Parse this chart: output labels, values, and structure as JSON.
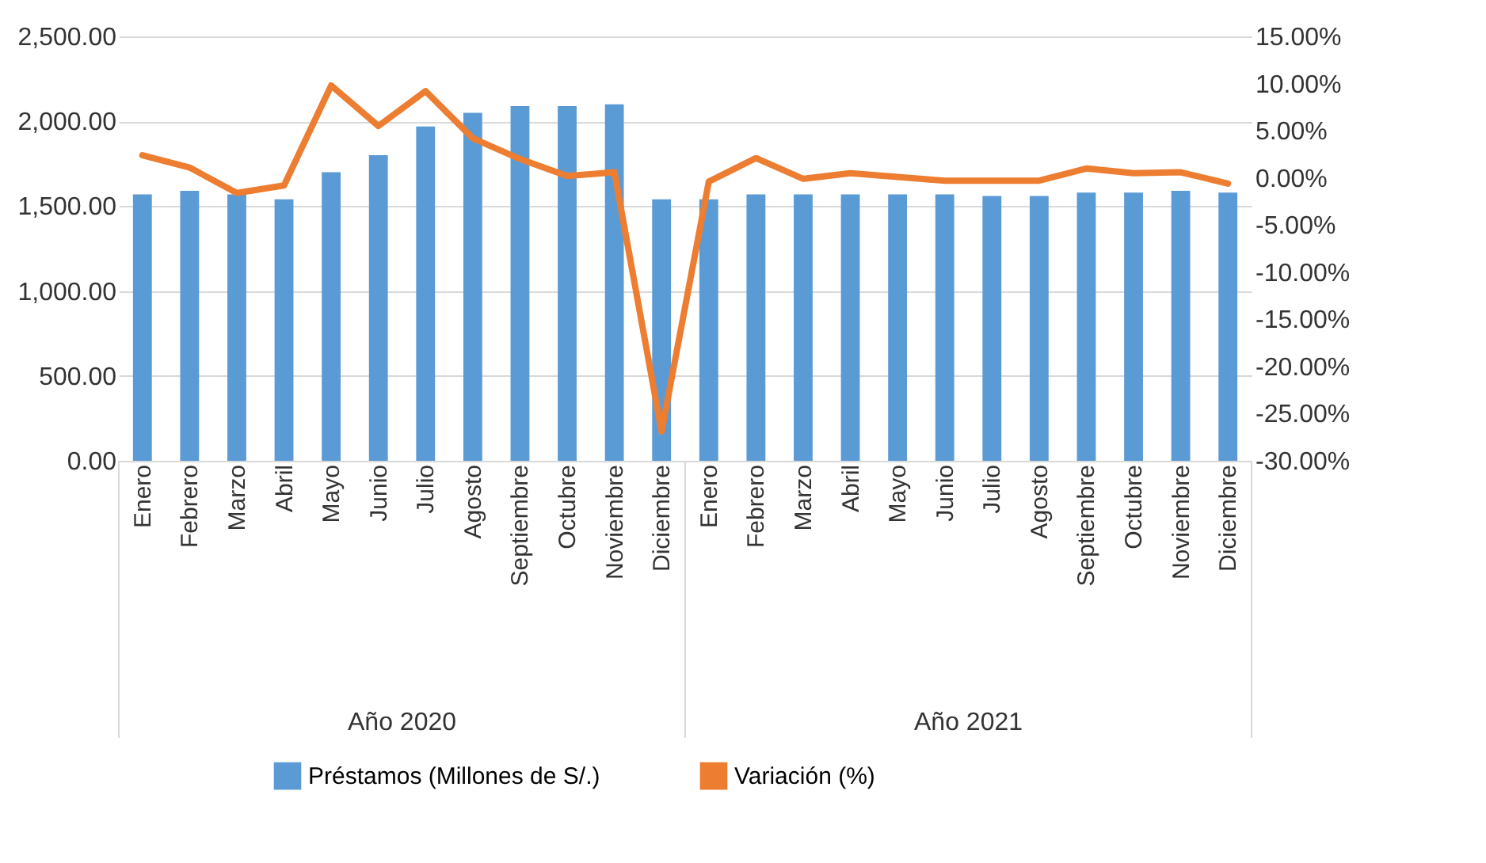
{
  "chart_data": {
    "type": "bar",
    "categories": [
      "Enero",
      "Febrero",
      "Marzo",
      "Abril",
      "Mayo",
      "Junio",
      "Julio",
      "Agosto",
      "Septiembre",
      "Octubre",
      "Noviembre",
      "Diciembre",
      "Enero",
      "Febrero",
      "Marzo",
      "Abril",
      "Mayo",
      "Junio",
      "Julio",
      "Agosto",
      "Septiembre",
      "Octubre",
      "Noviembre",
      "Diciembre"
    ],
    "series": [
      {
        "name": "Préstamos (Millones de S/.)",
        "color": "#5b9bd5",
        "values": [
          1570,
          1590,
          1570,
          1540,
          1700,
          1800,
          1970,
          2050,
          2090,
          2090,
          2100,
          1540,
          1540,
          1570,
          1570,
          1570,
          1570,
          1570,
          1560,
          1560,
          1580,
          1580,
          1590,
          1580
        ]
      },
      {
        "name": "Variación (%)",
        "type": "line",
        "axis": "y2",
        "color": "#ed7d31",
        "values": [
          2.4,
          1.1,
          -1.6,
          -0.8,
          9.8,
          5.5,
          9.2,
          4.2,
          2.0,
          0.2,
          0.6,
          -26.9,
          -0.4,
          2.1,
          -0.1,
          0.5,
          0.1,
          -0.3,
          -0.3,
          -0.3,
          1.0,
          0.5,
          0.6,
          -0.6
        ]
      }
    ],
    "annotations": [
      "Año 2020",
      "Año 2021"
    ],
    "ylim": [
      0,
      2500
    ],
    "yticks": [
      {
        "value": 0,
        "label": "0.00"
      },
      {
        "value": 500,
        "label": "500.00"
      },
      {
        "value": 1000,
        "label": "1,000.00"
      },
      {
        "value": 1500,
        "label": "1,500.00"
      },
      {
        "value": 2000,
        "label": "2,000.00"
      },
      {
        "value": 2500,
        "label": "2,500.00"
      }
    ],
    "y2lim": [
      -30,
      15
    ],
    "y2ticks": [
      {
        "value": -30,
        "label": "-30.00%"
      },
      {
        "value": -25,
        "label": "-25.00%"
      },
      {
        "value": -20,
        "label": "-20.00%"
      },
      {
        "value": -15,
        "label": "-15.00%"
      },
      {
        "value": -10,
        "label": "-10.00%"
      },
      {
        "value": -5,
        "label": "-5.00%"
      },
      {
        "value": 0,
        "label": "0.00%"
      },
      {
        "value": 5,
        "label": "5.00%"
      },
      {
        "value": 10,
        "label": "10.00%"
      },
      {
        "value": 15,
        "label": "15.00%"
      }
    ],
    "grid": "y",
    "legend": "bottom",
    "line_style": "solid",
    "marker": "none"
  }
}
